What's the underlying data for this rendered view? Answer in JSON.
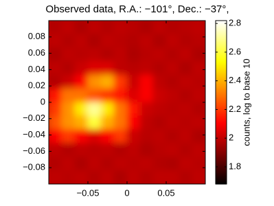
{
  "chart_data": {
    "type": "heatmap",
    "title": "Observed data, R.A.: −101°, Dec.: −37°,",
    "xlim": [
      -0.1,
      0.1
    ],
    "ylim": [
      -0.1,
      0.1
    ],
    "xticks": [
      {
        "value": -0.05,
        "label": "−0.05"
      },
      0,
      0.05
    ],
    "yticks": [
      0.08,
      0.06,
      0.04,
      0.02,
      0,
      {
        "value": -0.02,
        "label": "−0.02"
      },
      {
        "value": -0.04,
        "label": "−0.04"
      },
      {
        "value": -0.06,
        "label": "−0.06"
      },
      {
        "value": -0.08,
        "label": "−0.08"
      }
    ],
    "colormap": "hot",
    "clim": [
      1.68,
      2.82
    ],
    "cticks": [
      1.8,
      2,
      2.2,
      2.4,
      2.6,
      2.8
    ],
    "colorbar_label": "counts, log to base 10",
    "z": [
      [
        1.98,
        2.0,
        1.97,
        2.0,
        1.98,
        2.0,
        1.99,
        1.97,
        2.0,
        1.98,
        1.99,
        2.0
      ],
      [
        2.0,
        1.98,
        2.0,
        1.97,
        2.0,
        1.99,
        1.98,
        2.0,
        1.97,
        2.0,
        1.98,
        1.99
      ],
      [
        1.97,
        2.0,
        1.99,
        2.0,
        1.98,
        2.0,
        1.97,
        1.99,
        2.0,
        1.98,
        2.0,
        1.97
      ],
      [
        2.0,
        1.98,
        2.02,
        2.05,
        2.05,
        2.0,
        1.99,
        2.0,
        1.98,
        2.0,
        1.97,
        2.0
      ],
      [
        1.98,
        2.02,
        2.1,
        2.35,
        2.4,
        2.2,
        2.02,
        2.1,
        2.0,
        1.98,
        2.0,
        1.99
      ],
      [
        2.15,
        2.3,
        2.3,
        2.25,
        2.2,
        2.15,
        2.05,
        2.1,
        2.02,
        2.0,
        1.98,
        2.0
      ],
      [
        2.2,
        2.35,
        2.5,
        2.7,
        2.5,
        2.3,
        2.15,
        2.02,
        2.0,
        1.99,
        2.0,
        1.98
      ],
      [
        2.25,
        2.35,
        2.4,
        2.6,
        2.4,
        2.3,
        2.1,
        2.0,
        1.98,
        2.0,
        1.99,
        2.0
      ],
      [
        2.1,
        2.2,
        2.1,
        2.05,
        2.1,
        2.2,
        2.02,
        1.99,
        2.0,
        1.98,
        2.0,
        1.97
      ],
      [
        2.0,
        1.98,
        2.0,
        1.99,
        2.0,
        1.98,
        2.0,
        1.97,
        1.99,
        2.0,
        1.98,
        2.0
      ],
      [
        1.98,
        2.0,
        1.97,
        2.0,
        1.98,
        2.0,
        1.99,
        2.0,
        1.98,
        1.97,
        2.0,
        1.99
      ],
      [
        2.0,
        1.99,
        2.0,
        1.98,
        2.0,
        1.97,
        2.0,
        1.98,
        2.0,
        2.0,
        1.98,
        2.0
      ]
    ]
  }
}
